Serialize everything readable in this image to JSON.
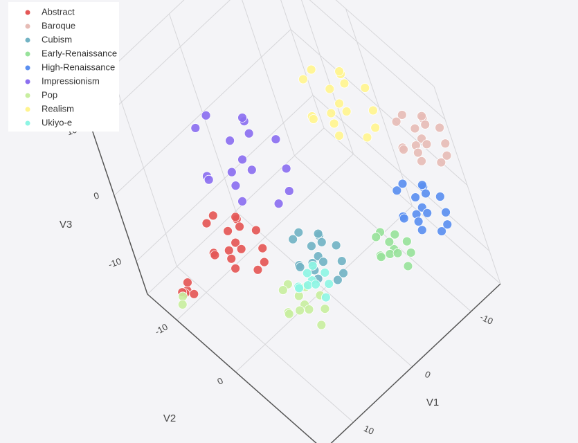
{
  "chart_data": {
    "type": "scatter3d",
    "xlabel": "V1",
    "ylabel": "V2",
    "zlabel": "V3",
    "xlim": [
      -15,
      15
    ],
    "ylim": [
      -15,
      15
    ],
    "zlim": [
      -15,
      15
    ],
    "xticks": [
      -10,
      0,
      10
    ],
    "yticks": [
      -10,
      0
    ],
    "zticks": [
      -10,
      0,
      10
    ],
    "grid": true,
    "legend": "upper-left",
    "series": [
      {
        "name": "Abstract",
        "color": "#e45756",
        "x": [
          7.7,
          9.3,
          6.1,
          10.1,
          5.3,
          8.5,
          6.9,
          10.9,
          4.5,
          7.7,
          7.7,
          9.3,
          6.1,
          10.1,
          5.3,
          8.5,
          6.9,
          14.4,
          15,
          13.8,
          14.8,
          14
        ],
        "y": [
          -3.2,
          -2.4,
          -4,
          -4.8,
          -1.6,
          -0.8,
          -5.6,
          -3.2,
          -3.2,
          0,
          -6.4,
          -5.6,
          -0.8,
          -0.8,
          -5.6,
          -4,
          -2.4,
          -6.2,
          -5.8,
          -6.6,
          -6.8,
          -5.6
        ],
        "z": [
          -4,
          -3.2,
          -2.4,
          -4.8,
          -5.6,
          -2.4,
          -4.8,
          -3.2,
          -4.8,
          -5.6,
          -2.4,
          -1.6,
          -6.4,
          -4,
          -4,
          -6.4,
          -1.6,
          -8,
          -7.6,
          -7.6,
          -8.4,
          -8.4
        ]
      },
      {
        "name": "Baroque",
        "color": "#e6bcb6",
        "x": [
          -13,
          -11.6,
          -14.4,
          -10.9,
          -15.1,
          -12.3,
          -13.7,
          -10.2,
          -15.8,
          -13,
          -13,
          -11.6,
          -14.4,
          -10.9,
          -15.1,
          -12.3,
          -13.7
        ],
        "y": [
          11.5,
          12.2,
          10.8,
          10.1,
          12.9,
          13.6,
          9.4,
          11.5,
          11.5,
          14.3,
          8.7,
          9.4,
          13.6,
          13.6,
          9.4,
          10.8,
          12.2
        ],
        "z": [
          6,
          6.7,
          7.4,
          5.3,
          4.6,
          7.4,
          5.3,
          6.7,
          5.3,
          4.6,
          7.4,
          8.1,
          3.9,
          6,
          6,
          3.9,
          8.1
        ]
      },
      {
        "name": "Cubism",
        "color": "#72b3c4",
        "x": [
          1.3,
          2.7,
          -0.1,
          3.4,
          -0.8,
          2,
          0.6,
          4.1,
          -1.5,
          1.3,
          1.3,
          2.7,
          -0.1,
          3.4,
          -0.8,
          2,
          0.6
        ],
        "y": [
          3.7,
          4.4,
          3,
          2.3,
          5.1,
          5.8,
          1.6,
          3.7,
          3.7,
          6.5,
          0.9,
          1.6,
          5.8,
          5.8,
          1.6,
          3,
          4.4
        ],
        "z": [
          -6,
          -5.3,
          -4.6,
          -6.7,
          -7.4,
          -4.6,
          -6.7,
          -5.3,
          -6.7,
          -7.4,
          -4.6,
          -3.9,
          -8.1,
          -6,
          -6,
          -8.1,
          -3.9
        ]
      },
      {
        "name": "Early-Renaissance",
        "color": "#98e29b",
        "x": [
          -5.6,
          -4.6,
          -6.6,
          -4.1,
          -7.1,
          -5.1,
          -6.1,
          -3.6,
          -7.6,
          -5.6,
          -5.6,
          -4.6
        ],
        "y": [
          9.7,
          10.2,
          9.2,
          8.7,
          10.7,
          11.2,
          8.2,
          9.7,
          9.7,
          11.7,
          7.7,
          8.2
        ],
        "z": [
          -6,
          -5.5,
          -5,
          -6.5,
          -7,
          -5,
          -6.5,
          -5.5,
          -6.5,
          -7,
          -5,
          -4.5
        ]
      },
      {
        "name": "High-Renaissance",
        "color": "#5b8ff0",
        "x": [
          -10.5,
          -9.1,
          -11.9,
          -8.4,
          -12.6,
          -9.8,
          -11.2,
          -7.7,
          -13.3,
          -10.5,
          -10.5,
          -9.1,
          -11.9,
          -8.4,
          -12.6,
          -9.8,
          -11.2
        ],
        "y": [
          10.7,
          11.4,
          10,
          9.3,
          12.1,
          12.8,
          8.6,
          10.7,
          10.7,
          13.5,
          7.9,
          8.6,
          12.8,
          12.8,
          8.6,
          10,
          11.4
        ],
        "z": [
          -3,
          -2.3,
          -1.6,
          -3.7,
          -4.4,
          -1.6,
          -3.7,
          -2.3,
          -3.7,
          -4.4,
          -1.6,
          -0.9,
          -5.1,
          -3,
          -3,
          -5.1,
          -0.9
        ]
      },
      {
        "name": "Impressionism",
        "color": "#8b6ff0",
        "x": [
          2.4,
          5.0,
          -0.2,
          6.3,
          -1.5,
          3.7,
          1.1,
          7.6,
          -2.8,
          2.4,
          2.4,
          5.0,
          -0.2,
          6.3,
          -1.5,
          3.7,
          1.1
        ],
        "y": [
          -4.7,
          -3.4,
          -6.0,
          -7.3,
          -2.1,
          -0.8,
          -8.6,
          -4.7,
          -4.7,
          0.5,
          -9.9,
          -8.6,
          -0.8,
          -0.8,
          -8.6,
          -6.0,
          -3.4
        ],
        "z": [
          3,
          4.3,
          5.6,
          1.7,
          0.4,
          5.6,
          1.7,
          4.3,
          1.7,
          0.4,
          5.6,
          6.9,
          -0.9,
          3,
          3,
          -0.9,
          6.9
        ]
      },
      {
        "name": "Pop",
        "color": "#c8eea0",
        "x": [
          5.2,
          6.4,
          4,
          7,
          3.4,
          5.8,
          4.6,
          7.6,
          2.8,
          5.2,
          5.2,
          6.4,
          14.8,
          15.4
        ],
        "y": [
          3.8,
          4.4,
          3.2,
          2.6,
          5,
          5.6,
          2,
          3.8,
          3.8,
          6.2,
          1.4,
          2,
          -7,
          -6.6
        ],
        "z": [
          -10,
          -9.4,
          -8.8,
          -10.6,
          -11.2,
          -8.8,
          -10.6,
          -9.4,
          -10.6,
          -11.2,
          -8.8,
          -8.2,
          -9.2,
          -9.6
        ]
      },
      {
        "name": "Realism",
        "color": "#fff48f",
        "x": [
          -9.5,
          -7.5,
          -11.5,
          -6.5,
          -12.5,
          -8.5,
          -10.5,
          -5.5,
          -13.5,
          -9.5,
          -9.5,
          -7.5,
          -11.5,
          -6.5,
          -12.5,
          -8.5,
          -10.5
        ],
        "y": [
          1,
          2,
          0,
          -1,
          3,
          4,
          -2,
          1,
          1,
          5,
          -3,
          -2,
          4,
          4,
          -2,
          0,
          2
        ],
        "z": [
          6,
          7,
          8,
          5,
          4,
          8,
          5,
          7,
          5,
          4,
          8,
          9,
          3,
          6,
          6,
          3,
          9
        ]
      },
      {
        "name": "Ukiyo-e",
        "color": "#8ef5e4",
        "x": [
          3.2,
          4.2,
          2.2,
          4.7,
          1.7,
          3.7,
          2.7,
          5.2,
          1.2,
          3.2
        ],
        "y": [
          3.8,
          4.3,
          3.3,
          2.8,
          4.8,
          5.3,
          2.3,
          3.8,
          3.8,
          5.8
        ],
        "z": [
          -8,
          -7.5,
          -7,
          -8.5,
          -9,
          -7,
          -8.5,
          -7.5,
          -8.5,
          -9
        ]
      }
    ]
  }
}
